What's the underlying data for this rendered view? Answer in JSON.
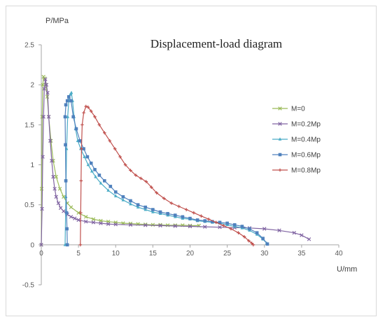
{
  "chart_data": {
    "type": "line",
    "title": "Displacement-load diagram",
    "xlabel": "U/mm",
    "ylabel": "P/MPa",
    "xlim": [
      0,
      40
    ],
    "ylim": [
      -0.5,
      2.5
    ],
    "xticks": [
      0,
      5,
      10,
      15,
      20,
      25,
      30,
      35,
      40
    ],
    "yticks": [
      -0.5,
      0,
      0.5,
      1,
      1.5,
      2,
      2.5
    ],
    "grid": false,
    "legend_position": "right",
    "series": [
      {
        "name": "M=0",
        "color": "#9bbb59",
        "marker": "x",
        "points": [
          [
            0,
            0
          ],
          [
            0.05,
            0.7
          ],
          [
            0.12,
            1.6
          ],
          [
            0.2,
            2.0
          ],
          [
            0.3,
            2.1
          ],
          [
            0.45,
            2.08
          ],
          [
            0.6,
            2.0
          ],
          [
            0.8,
            1.85
          ],
          [
            1.0,
            1.6
          ],
          [
            1.3,
            1.3
          ],
          [
            1.6,
            1.05
          ],
          [
            2.0,
            0.85
          ],
          [
            2.5,
            0.7
          ],
          [
            3.0,
            0.6
          ],
          [
            3.5,
            0.52
          ],
          [
            4.0,
            0.47
          ],
          [
            5.0,
            0.4
          ],
          [
            6.0,
            0.35
          ],
          [
            7.0,
            0.32
          ],
          [
            8.0,
            0.3
          ],
          [
            9.0,
            0.29
          ],
          [
            10,
            0.28
          ],
          [
            11,
            0.27
          ],
          [
            12,
            0.265
          ],
          [
            13,
            0.26
          ],
          [
            14,
            0.255
          ],
          [
            15,
            0.25
          ],
          [
            16,
            0.25
          ],
          [
            17,
            0.245
          ],
          [
            18,
            0.245
          ],
          [
            19,
            0.245
          ],
          [
            20,
            0.24
          ],
          [
            21.2,
            0.24
          ]
        ]
      },
      {
        "name": "M=0.2Mp",
        "color": "#8064a2",
        "marker": "x",
        "points": [
          [
            0,
            0
          ],
          [
            0.1,
            0.45
          ],
          [
            0.2,
            1.1
          ],
          [
            0.3,
            1.6
          ],
          [
            0.4,
            1.95
          ],
          [
            0.55,
            2.07
          ],
          [
            0.7,
            2.0
          ],
          [
            0.85,
            1.9
          ],
          [
            1.0,
            1.6
          ],
          [
            1.2,
            1.3
          ],
          [
            1.4,
            1.05
          ],
          [
            1.6,
            0.85
          ],
          [
            1.8,
            0.7
          ],
          [
            2.0,
            0.6
          ],
          [
            2.3,
            0.52
          ],
          [
            2.6,
            0.46
          ],
          [
            3.0,
            0.42
          ],
          [
            3.5,
            0.38
          ],
          [
            4.0,
            0.35
          ],
          [
            4.5,
            0.33
          ],
          [
            5,
            0.31
          ],
          [
            6,
            0.29
          ],
          [
            7,
            0.28
          ],
          [
            8,
            0.27
          ],
          [
            9,
            0.26
          ],
          [
            10,
            0.255
          ],
          [
            12,
            0.25
          ],
          [
            14,
            0.245
          ],
          [
            16,
            0.24
          ],
          [
            18,
            0.235
          ],
          [
            20,
            0.23
          ],
          [
            22,
            0.225
          ],
          [
            24,
            0.22
          ],
          [
            26,
            0.215
          ],
          [
            28,
            0.21
          ],
          [
            30,
            0.2
          ],
          [
            32,
            0.18
          ],
          [
            34,
            0.15
          ],
          [
            35,
            0.12
          ],
          [
            36,
            0.07
          ]
        ]
      },
      {
        "name": "M=0.4Mp",
        "color": "#4bacc6",
        "marker": "triangle",
        "points": [
          [
            3.2,
            0
          ],
          [
            3.3,
            0.6
          ],
          [
            3.4,
            1.2
          ],
          [
            3.55,
            1.6
          ],
          [
            3.7,
            1.8
          ],
          [
            3.9,
            1.88
          ],
          [
            4.05,
            1.9
          ],
          [
            4.2,
            1.8
          ],
          [
            4.4,
            1.6
          ],
          [
            4.6,
            1.45
          ],
          [
            4.9,
            1.3
          ],
          [
            5.3,
            1.2
          ],
          [
            5.8,
            1.1
          ],
          [
            6.3,
            1.0
          ],
          [
            6.8,
            0.92
          ],
          [
            7.3,
            0.85
          ],
          [
            8,
            0.77
          ],
          [
            9,
            0.68
          ],
          [
            10,
            0.61
          ],
          [
            11,
            0.56
          ],
          [
            12,
            0.51
          ],
          [
            13,
            0.47
          ],
          [
            14,
            0.44
          ],
          [
            15,
            0.41
          ],
          [
            16,
            0.39
          ],
          [
            17,
            0.37
          ],
          [
            18,
            0.35
          ],
          [
            19,
            0.33
          ],
          [
            20,
            0.32
          ],
          [
            21,
            0.3
          ],
          [
            22,
            0.29
          ],
          [
            23,
            0.28
          ],
          [
            24,
            0.27
          ],
          [
            25,
            0.25
          ],
          [
            26,
            0.23
          ],
          [
            27,
            0.21
          ],
          [
            28,
            0.18
          ],
          [
            29,
            0.13
          ],
          [
            29.8,
            0.07
          ],
          [
            30.3,
            0.02
          ]
        ]
      },
      {
        "name": "M=0.6Mp",
        "color": "#4f81bd",
        "marker": "square",
        "points": [
          [
            3.5,
            0
          ],
          [
            3.45,
            0.2
          ],
          [
            3.4,
            0.4
          ],
          [
            3.3,
            0.8
          ],
          [
            3.25,
            1.25
          ],
          [
            3.2,
            1.6
          ],
          [
            3.3,
            1.75
          ],
          [
            3.5,
            1.8
          ],
          [
            3.7,
            1.85
          ],
          [
            4.0,
            1.8
          ],
          [
            4.3,
            1.6
          ],
          [
            4.7,
            1.45
          ],
          [
            5.2,
            1.3
          ],
          [
            5.7,
            1.2
          ],
          [
            6.2,
            1.1
          ],
          [
            6.7,
            1.02
          ],
          [
            7.2,
            0.94
          ],
          [
            7.8,
            0.87
          ],
          [
            8.5,
            0.8
          ],
          [
            9.3,
            0.73
          ],
          [
            10,
            0.66
          ],
          [
            11,
            0.6
          ],
          [
            12,
            0.55
          ],
          [
            13,
            0.5
          ],
          [
            14,
            0.47
          ],
          [
            15,
            0.44
          ],
          [
            16,
            0.41
          ],
          [
            17,
            0.39
          ],
          [
            18,
            0.37
          ],
          [
            19,
            0.35
          ],
          [
            20,
            0.33
          ],
          [
            21,
            0.31
          ],
          [
            22,
            0.3
          ],
          [
            23,
            0.29
          ],
          [
            24,
            0.28
          ],
          [
            25,
            0.27
          ],
          [
            26,
            0.25
          ],
          [
            27,
            0.23
          ],
          [
            28,
            0.2
          ],
          [
            29,
            0.15
          ],
          [
            29.8,
            0.08
          ],
          [
            30.4,
            0.01
          ]
        ]
      },
      {
        "name": "M=0.8Mp",
        "color": "#c0504d",
        "marker": "plus",
        "points": [
          [
            5.25,
            0
          ],
          [
            5.3,
            0.4
          ],
          [
            5.35,
            0.8
          ],
          [
            5.4,
            1.2
          ],
          [
            5.5,
            1.5
          ],
          [
            5.7,
            1.65
          ],
          [
            6.0,
            1.73
          ],
          [
            6.3,
            1.72
          ],
          [
            6.7,
            1.67
          ],
          [
            7.2,
            1.6
          ],
          [
            7.8,
            1.5
          ],
          [
            8.5,
            1.4
          ],
          [
            9.2,
            1.3
          ],
          [
            9.9,
            1.2
          ],
          [
            10.6,
            1.1
          ],
          [
            11.3,
            1.0
          ],
          [
            12,
            0.93
          ],
          [
            12.7,
            0.87
          ],
          [
            13.4,
            0.83
          ],
          [
            14.1,
            0.79
          ],
          [
            14.8,
            0.72
          ],
          [
            15.5,
            0.65
          ],
          [
            16.5,
            0.58
          ],
          [
            17.5,
            0.52
          ],
          [
            18.5,
            0.48
          ],
          [
            19.5,
            0.44
          ],
          [
            20.5,
            0.4
          ],
          [
            21.5,
            0.36
          ],
          [
            22.5,
            0.32
          ],
          [
            23.5,
            0.28
          ],
          [
            24.5,
            0.24
          ],
          [
            25.5,
            0.2
          ],
          [
            26.5,
            0.15
          ],
          [
            27.3,
            0.1
          ],
          [
            27.9,
            0.05
          ],
          [
            28.3,
            0.02
          ],
          [
            28.5,
            0.0
          ]
        ]
      }
    ]
  }
}
